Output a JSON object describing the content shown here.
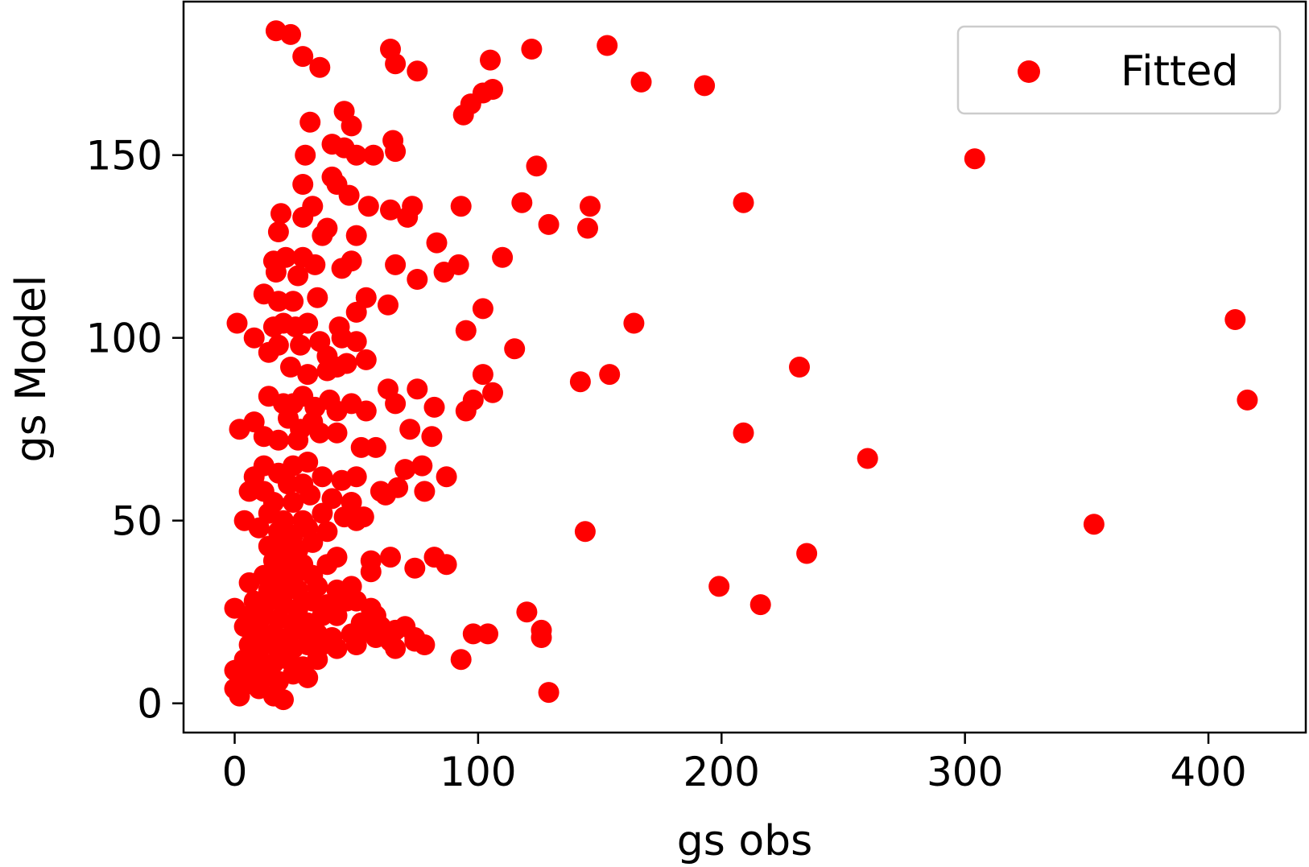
{
  "chart_data": {
    "type": "scatter",
    "xlabel": "gs obs",
    "ylabel": "gs Model",
    "xlim": [
      -21,
      440
    ],
    "ylim": [
      -8,
      192
    ],
    "xticks": [
      0,
      100,
      200,
      300,
      400
    ],
    "yticks": [
      0,
      50,
      100,
      150
    ],
    "grid": false,
    "legend": {
      "position": "top-right",
      "entries": [
        "Fitted"
      ]
    },
    "series": [
      {
        "name": "Fitted",
        "color": "#ff0000",
        "points": [
          [
            17,
            184
          ],
          [
            23,
            183
          ],
          [
            28,
            177
          ],
          [
            35,
            174
          ],
          [
            31,
            159
          ],
          [
            29,
            150
          ],
          [
            40,
            153
          ],
          [
            45,
            152
          ],
          [
            50,
            150
          ],
          [
            57,
            150
          ],
          [
            65,
            154
          ],
          [
            66,
            151
          ],
          [
            45,
            162
          ],
          [
            48,
            158
          ],
          [
            64,
            179
          ],
          [
            66,
            175
          ],
          [
            75,
            173
          ],
          [
            105,
            176
          ],
          [
            122,
            179
          ],
          [
            153,
            180
          ],
          [
            167,
            170
          ],
          [
            193,
            169
          ],
          [
            94,
            161
          ],
          [
            97,
            164
          ],
          [
            102,
            167
          ],
          [
            106,
            168
          ],
          [
            124,
            147
          ],
          [
            304,
            149
          ],
          [
            28,
            142
          ],
          [
            19,
            134
          ],
          [
            18,
            129
          ],
          [
            28,
            133
          ],
          [
            32,
            136
          ],
          [
            40,
            144
          ],
          [
            42,
            142
          ],
          [
            47,
            139
          ],
          [
            55,
            136
          ],
          [
            64,
            135
          ],
          [
            71,
            133
          ],
          [
            73,
            136
          ],
          [
            93,
            136
          ],
          [
            118,
            137
          ],
          [
            146,
            136
          ],
          [
            209,
            137
          ],
          [
            129,
            131
          ],
          [
            145,
            130
          ],
          [
            38,
            130
          ],
          [
            36,
            128
          ],
          [
            50,
            128
          ],
          [
            83,
            126
          ],
          [
            110,
            122
          ],
          [
            86,
            118
          ],
          [
            92,
            120
          ],
          [
            75,
            116
          ],
          [
            66,
            120
          ],
          [
            48,
            121
          ],
          [
            44,
            119
          ],
          [
            33,
            120
          ],
          [
            28,
            122
          ],
          [
            21,
            122
          ],
          [
            16,
            121
          ],
          [
            17,
            118
          ],
          [
            26,
            117
          ],
          [
            12,
            112
          ],
          [
            18,
            110
          ],
          [
            24,
            110
          ],
          [
            34,
            111
          ],
          [
            54,
            111
          ],
          [
            50,
            107
          ],
          [
            63,
            109
          ],
          [
            102,
            108
          ],
          [
            95,
            102
          ],
          [
            164,
            104
          ],
          [
            411,
            105
          ],
          [
            1,
            104
          ],
          [
            16,
            103
          ],
          [
            20,
            104
          ],
          [
            25,
            103
          ],
          [
            30,
            104
          ],
          [
            43,
            103
          ],
          [
            8,
            100
          ],
          [
            14,
            96
          ],
          [
            18,
            98
          ],
          [
            27,
            98
          ],
          [
            35,
            99
          ],
          [
            44,
            100
          ],
          [
            50,
            99
          ],
          [
            38,
            95
          ],
          [
            46,
            93
          ],
          [
            54,
            94
          ],
          [
            115,
            97
          ],
          [
            102,
            90
          ],
          [
            154,
            90
          ],
          [
            232,
            92
          ],
          [
            23,
            92
          ],
          [
            30,
            90
          ],
          [
            38,
            91
          ],
          [
            42,
            92
          ],
          [
            63,
            86
          ],
          [
            66,
            82
          ],
          [
            75,
            86
          ],
          [
            82,
            81
          ],
          [
            95,
            80
          ],
          [
            98,
            83
          ],
          [
            106,
            85
          ],
          [
            142,
            88
          ],
          [
            416,
            83
          ],
          [
            14,
            84
          ],
          [
            20,
            82
          ],
          [
            24,
            82
          ],
          [
            28,
            84
          ],
          [
            33,
            81
          ],
          [
            39,
            83
          ],
          [
            48,
            82
          ],
          [
            54,
            80
          ],
          [
            42,
            80
          ],
          [
            32,
            77
          ],
          [
            27,
            75
          ],
          [
            22,
            78
          ],
          [
            8,
            77
          ],
          [
            2,
            75
          ],
          [
            12,
            73
          ],
          [
            18,
            72
          ],
          [
            26,
            72
          ],
          [
            35,
            74
          ],
          [
            42,
            74
          ],
          [
            52,
            70
          ],
          [
            58,
            70
          ],
          [
            72,
            75
          ],
          [
            81,
            73
          ],
          [
            209,
            74
          ],
          [
            260,
            67
          ],
          [
            70,
            64
          ],
          [
            77,
            65
          ],
          [
            87,
            62
          ],
          [
            30,
            66
          ],
          [
            24,
            65
          ],
          [
            18,
            63
          ],
          [
            12,
            65
          ],
          [
            8,
            62
          ],
          [
            22,
            60
          ],
          [
            28,
            60
          ],
          [
            36,
            62
          ],
          [
            44,
            61
          ],
          [
            50,
            62
          ],
          [
            60,
            58
          ],
          [
            62,
            57
          ],
          [
            67,
            59
          ],
          [
            78,
            58
          ],
          [
            12,
            58
          ],
          [
            6,
            58
          ],
          [
            16,
            55
          ],
          [
            24,
            55
          ],
          [
            31,
            57
          ],
          [
            40,
            56
          ],
          [
            48,
            55
          ],
          [
            14,
            52
          ],
          [
            20,
            50
          ],
          [
            28,
            50
          ],
          [
            36,
            52
          ],
          [
            45,
            51
          ],
          [
            53,
            51
          ],
          [
            4,
            50
          ],
          [
            10,
            48
          ],
          [
            18,
            47
          ],
          [
            24,
            46
          ],
          [
            30,
            48
          ],
          [
            38,
            47
          ],
          [
            50,
            50
          ],
          [
            144,
            47
          ],
          [
            353,
            49
          ],
          [
            14,
            43
          ],
          [
            20,
            42
          ],
          [
            26,
            42
          ],
          [
            32,
            44
          ],
          [
            16,
            39
          ],
          [
            22,
            38
          ],
          [
            28,
            38
          ],
          [
            38,
            38
          ],
          [
            42,
            40
          ],
          [
            56,
            39
          ],
          [
            64,
            40
          ],
          [
            74,
            37
          ],
          [
            82,
            40
          ],
          [
            87,
            38
          ],
          [
            56,
            36
          ],
          [
            235,
            41
          ],
          [
            12,
            35
          ],
          [
            18,
            34
          ],
          [
            24,
            34
          ],
          [
            32,
            35
          ],
          [
            6,
            33
          ],
          [
            14,
            31
          ],
          [
            20,
            30
          ],
          [
            26,
            31
          ],
          [
            34,
            32
          ],
          [
            42,
            31
          ],
          [
            48,
            32
          ],
          [
            199,
            32
          ],
          [
            8,
            28
          ],
          [
            14,
            28
          ],
          [
            20,
            27
          ],
          [
            26,
            26
          ],
          [
            32,
            28
          ],
          [
            38,
            27
          ],
          [
            46,
            28
          ],
          [
            50,
            28
          ],
          [
            56,
            26
          ],
          [
            216,
            27
          ],
          [
            0,
            26
          ],
          [
            6,
            24
          ],
          [
            12,
            24
          ],
          [
            18,
            23
          ],
          [
            24,
            22
          ],
          [
            30,
            22
          ],
          [
            36,
            24
          ],
          [
            42,
            24
          ],
          [
            52,
            22
          ],
          [
            58,
            24
          ],
          [
            120,
            25
          ],
          [
            4,
            21
          ],
          [
            10,
            20
          ],
          [
            16,
            19
          ],
          [
            22,
            18
          ],
          [
            28,
            20
          ],
          [
            34,
            19
          ],
          [
            40,
            18
          ],
          [
            48,
            19
          ],
          [
            54,
            20
          ],
          [
            60,
            21
          ],
          [
            66,
            20
          ],
          [
            70,
            21
          ],
          [
            74,
            18
          ],
          [
            126,
            20
          ],
          [
            6,
            16
          ],
          [
            12,
            16
          ],
          [
            18,
            15
          ],
          [
            24,
            15
          ],
          [
            30,
            16
          ],
          [
            36,
            16
          ],
          [
            42,
            15
          ],
          [
            50,
            16
          ],
          [
            58,
            18
          ],
          [
            64,
            17
          ],
          [
            74,
            17
          ],
          [
            78,
            16
          ],
          [
            98,
            19
          ],
          [
            104,
            19
          ],
          [
            126,
            18
          ],
          [
            4,
            12
          ],
          [
            10,
            12
          ],
          [
            16,
            11
          ],
          [
            22,
            12
          ],
          [
            28,
            10
          ],
          [
            34,
            12
          ],
          [
            66,
            15
          ],
          [
            93,
            12
          ],
          [
            0,
            9
          ],
          [
            6,
            8
          ],
          [
            12,
            7
          ],
          [
            18,
            6
          ],
          [
            24,
            8
          ],
          [
            30,
            7
          ],
          [
            0,
            4
          ],
          [
            4,
            5
          ],
          [
            10,
            4
          ],
          [
            16,
            2
          ],
          [
            20,
            1
          ],
          [
            2,
            2
          ],
          [
            129,
            3
          ]
        ]
      }
    ]
  }
}
